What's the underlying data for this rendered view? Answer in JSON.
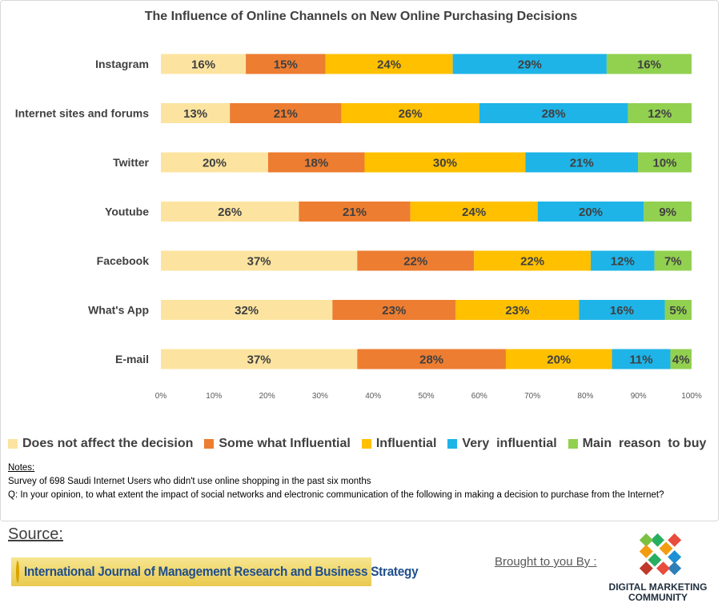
{
  "chart_data": {
    "type": "bar",
    "orientation": "horizontal",
    "stacked": "percent",
    "title": "The Influence of Online Channels on New Online Purchasing Decisions",
    "categories": [
      "Instagram",
      "Internet sites and forums",
      "Twitter",
      "Youtube",
      "Facebook",
      "What's App",
      "E-mail"
    ],
    "series": [
      {
        "name": "Does not affect the decision",
        "color": "#fce4a0",
        "values": [
          16,
          13,
          20,
          26,
          37,
          32,
          37
        ]
      },
      {
        "name": "Some what Influential",
        "color": "#ed7d31",
        "values": [
          15,
          21,
          18,
          21,
          22,
          23,
          28
        ]
      },
      {
        "name": "Influential",
        "color": "#ffc000",
        "values": [
          24,
          26,
          30,
          24,
          22,
          23,
          20
        ]
      },
      {
        "name": "Very  influential",
        "color": "#1eb4e8",
        "values": [
          29,
          28,
          21,
          20,
          12,
          16,
          11
        ]
      },
      {
        "name": "Main  reason  to buy",
        "color": "#92d050",
        "values": [
          16,
          12,
          10,
          9,
          7,
          5,
          4
        ]
      }
    ],
    "xlim": [
      0,
      100
    ],
    "xticks": [
      "0%",
      "10%",
      "20%",
      "30%",
      "40%",
      "50%",
      "60%",
      "70%",
      "80%",
      "90%",
      "100%"
    ],
    "legend_position": "bottom",
    "grid": false
  },
  "notes": {
    "title": "Notes:",
    "line1": "Survey of 698 Saudi Internet Users who didn't use online shopping in the past six months",
    "line2": "Q: In your opinion, to what extent the impact of social networks and electronic communication of the following in making a decision to purchase from the Internet?"
  },
  "source": {
    "label": "Source:",
    "journal": "International Journal of Management Research and Business Strategy"
  },
  "footer": {
    "brought_by": "Brought to you By :",
    "logo_line1": "DIGITAL MARKETING",
    "logo_line2": "COMMUNITY"
  }
}
